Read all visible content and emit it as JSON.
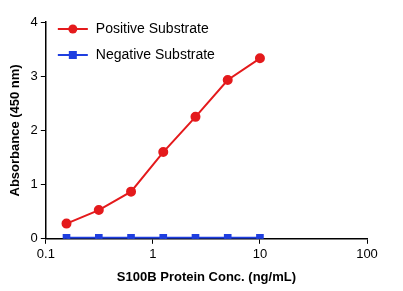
{
  "chart_data": {
    "type": "line",
    "x_label": "S100B Protein Conc. (ng/mL)",
    "y_label": "Absorbance (450 nm)",
    "x": [
      0.156,
      0.3125,
      0.625,
      1.25,
      2.5,
      5,
      10
    ],
    "series": [
      {
        "name": "Positive Substrate",
        "color": "#e41a1c",
        "marker": "circle",
        "line_style": "solid",
        "values": [
          0.28,
          0.53,
          0.87,
          1.6,
          2.25,
          2.93,
          3.33
        ]
      },
      {
        "name": "Negative Substrate",
        "color": "#1f3fe0",
        "marker": "square",
        "line_style": "solid",
        "values": [
          0.02,
          0.02,
          0.02,
          0.02,
          0.02,
          0.02,
          0.02
        ]
      }
    ],
    "log": "x",
    "xlim": [
      0.1,
      100
    ],
    "xticks": [
      0.1,
      1,
      10,
      100
    ],
    "ylim": [
      0,
      4
    ],
    "yticks": [
      0,
      1,
      2,
      3,
      4
    ],
    "grid": false,
    "legend": "upper left"
  }
}
